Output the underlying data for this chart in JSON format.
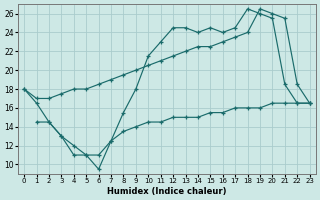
{
  "xlabel": "Humidex (Indice chaleur)",
  "background_color": "#cde8e5",
  "grid_color": "#aacccc",
  "line_color": "#1a6b6b",
  "xlim": [
    -0.5,
    23.5
  ],
  "ylim": [
    9,
    27
  ],
  "xticks": [
    0,
    1,
    2,
    3,
    4,
    5,
    6,
    7,
    8,
    9,
    10,
    11,
    12,
    13,
    14,
    15,
    16,
    17,
    18,
    19,
    20,
    21,
    22,
    23
  ],
  "yticks": [
    10,
    12,
    14,
    16,
    18,
    20,
    22,
    24,
    26
  ],
  "line1_x": [
    0,
    1,
    2,
    3,
    4,
    5,
    6,
    7,
    8,
    9,
    10,
    11,
    12,
    13,
    14,
    15,
    16,
    17,
    18,
    19,
    20,
    21,
    22,
    23
  ],
  "line1_y": [
    18.0,
    16.5,
    14.5,
    13.0,
    11.0,
    11.0,
    9.5,
    12.5,
    15.5,
    18.0,
    21.5,
    23.0,
    24.5,
    24.5,
    24.0,
    24.5,
    24.0,
    24.5,
    26.5,
    26.0,
    25.5,
    18.5,
    16.5,
    16.5
  ],
  "line2_x": [
    0,
    1,
    2,
    3,
    4,
    5,
    6,
    7,
    8,
    9,
    10,
    11,
    12,
    13,
    14,
    15,
    16,
    17,
    18,
    19,
    20,
    21,
    22,
    23
  ],
  "line2_y": [
    18.0,
    17.0,
    17.0,
    17.5,
    18.0,
    18.0,
    18.5,
    19.0,
    19.5,
    20.0,
    20.5,
    21.0,
    21.5,
    22.0,
    22.5,
    22.5,
    23.0,
    23.5,
    24.0,
    26.5,
    26.0,
    25.5,
    18.5,
    16.5
  ],
  "line3_x": [
    1,
    2,
    3,
    4,
    5,
    6,
    7,
    8,
    9,
    10,
    11,
    12,
    13,
    14,
    15,
    16,
    17,
    18,
    19,
    20,
    21,
    22,
    23
  ],
  "line3_y": [
    14.5,
    14.5,
    13.0,
    12.0,
    11.0,
    11.0,
    12.5,
    13.5,
    14.0,
    14.5,
    14.5,
    15.0,
    15.0,
    15.0,
    15.5,
    15.5,
    16.0,
    16.0,
    16.0,
    16.5,
    16.5,
    16.5,
    16.5
  ]
}
